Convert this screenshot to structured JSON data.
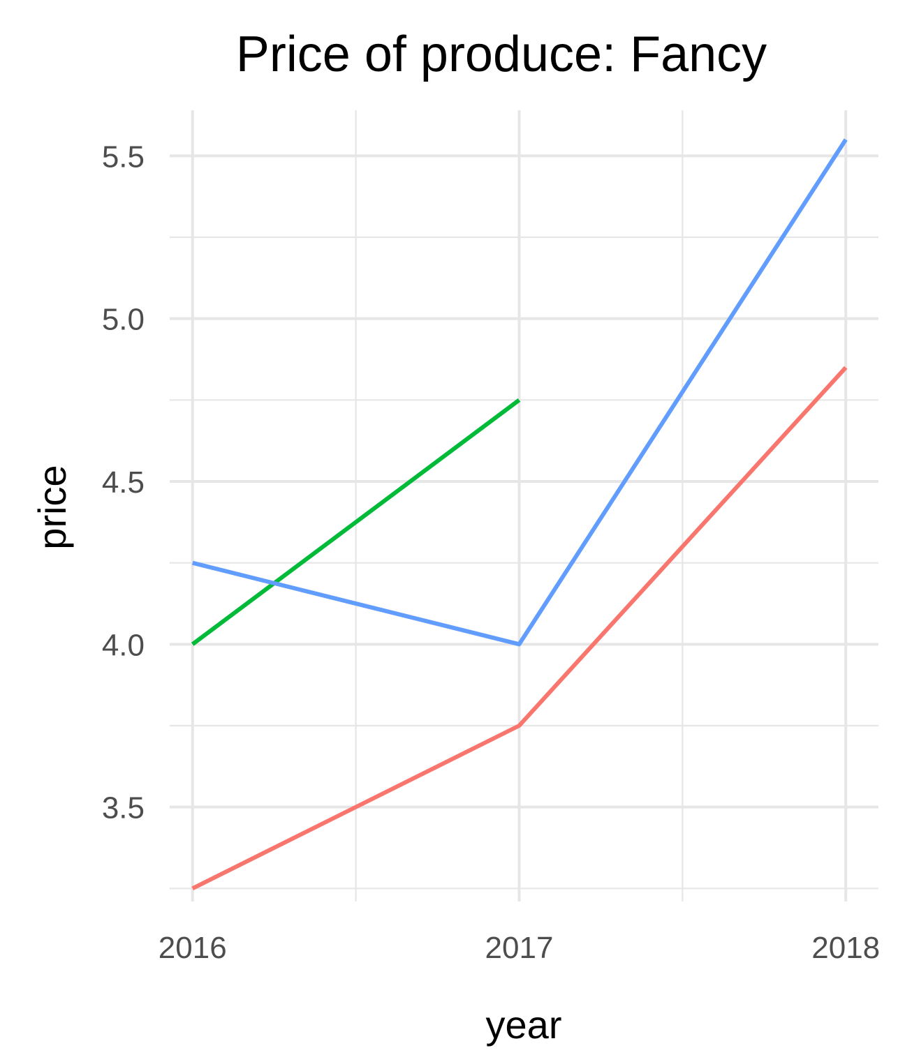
{
  "chart_data": {
    "type": "line",
    "title": "Price of produce: Fancy",
    "xlabel": "year",
    "ylabel": "price",
    "x_ticks": [
      "2016",
      "2017",
      "2018"
    ],
    "y_ticks": [
      "3.5",
      "4.0",
      "4.5",
      "5.0",
      "5.5"
    ],
    "xlim": [
      2015.93,
      2018.1
    ],
    "ylim": [
      3.21,
      5.64
    ],
    "grid": true,
    "legend": "none",
    "series": [
      {
        "color": "#F8766D",
        "x": [
          2016,
          2017,
          2018
        ],
        "y": [
          3.25,
          3.75,
          4.85
        ]
      },
      {
        "color": "#00BA38",
        "x": [
          2016,
          2017
        ],
        "y": [
          4.0,
          4.75
        ]
      },
      {
        "color": "#619CFF",
        "x": [
          2016,
          2017,
          2018
        ],
        "y": [
          4.25,
          4.0,
          5.55
        ]
      }
    ]
  }
}
